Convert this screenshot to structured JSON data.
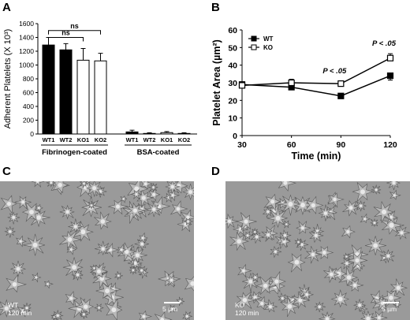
{
  "panels": {
    "A": {
      "letter": "A"
    },
    "B": {
      "letter": "B"
    },
    "C": {
      "letter": "C",
      "caption_line1": "WT",
      "caption_line2": "120 min",
      "scalebar": "5 µm"
    },
    "D": {
      "letter": "D",
      "caption_line1": "KO",
      "caption_line2": "120 min",
      "scalebar": "5 µm"
    }
  },
  "chart_data": [
    {
      "type": "bar",
      "panel": "A",
      "ylabel": "Adherent Platelets (X 10³)",
      "ylim": [
        0,
        1600
      ],
      "yticks": [
        0,
        200,
        400,
        600,
        800,
        1000,
        1200,
        1400,
        1600
      ],
      "groups": [
        {
          "name": "Fibrinogen-coated",
          "categories": [
            "WT1",
            "WT2",
            "KO1",
            "KO2"
          ]
        },
        {
          "name": "BSA-coated",
          "categories": [
            "WT1",
            "WT2",
            "KO1",
            "KO2"
          ]
        }
      ],
      "bars": [
        {
          "group": 0,
          "label": "WT1",
          "value": 1290,
          "error": 110,
          "fill": "#000000"
        },
        {
          "group": 0,
          "label": "WT2",
          "value": 1220,
          "error": 90,
          "fill": "#000000"
        },
        {
          "group": 0,
          "label": "KO1",
          "value": 1070,
          "error": 170,
          "fill": "#ffffff"
        },
        {
          "group": 0,
          "label": "KO2",
          "value": 1060,
          "error": 110,
          "fill": "#ffffff"
        },
        {
          "group": 1,
          "label": "WT1",
          "value": 30,
          "error": 25,
          "fill": "#000000"
        },
        {
          "group": 1,
          "label": "WT2",
          "value": 8,
          "error": 10,
          "fill": "#000000"
        },
        {
          "group": 1,
          "label": "KO1",
          "value": 20,
          "error": 15,
          "fill": "#ffffff"
        },
        {
          "group": 1,
          "label": "KO2",
          "value": 8,
          "error": 10,
          "fill": "#ffffff"
        }
      ],
      "annotations": [
        {
          "text": "ns",
          "from_bar": 0,
          "to_bar": 2,
          "level": 1400
        },
        {
          "text": "ns",
          "from_bar": 0,
          "to_bar": 3,
          "level": 1500
        }
      ],
      "grid": false
    },
    {
      "type": "line",
      "panel": "B",
      "xlabel": "Time (min)",
      "ylabel": "Platelet Area (µm²)",
      "x": [
        30,
        60,
        90,
        120
      ],
      "xlim": [
        30,
        120
      ],
      "ylim": [
        0,
        60
      ],
      "yticks": [
        0,
        10,
        20,
        30,
        40,
        50,
        60
      ],
      "series": [
        {
          "name": "WT",
          "marker": "filled-square",
          "values": [
            29,
            27.5,
            22.5,
            34
          ],
          "errors": [
            1.5,
            1.5,
            1,
            2.5
          ]
        },
        {
          "name": "KO",
          "marker": "open-square",
          "values": [
            28.5,
            30,
            29.5,
            44
          ],
          "errors": [
            2,
            2,
            1.5,
            2.5
          ]
        }
      ],
      "annotations": [
        {
          "text": "P < .05",
          "x": 90
        },
        {
          "text": "P < .05",
          "x": 120
        }
      ],
      "legend": "top-left",
      "grid": false
    }
  ]
}
